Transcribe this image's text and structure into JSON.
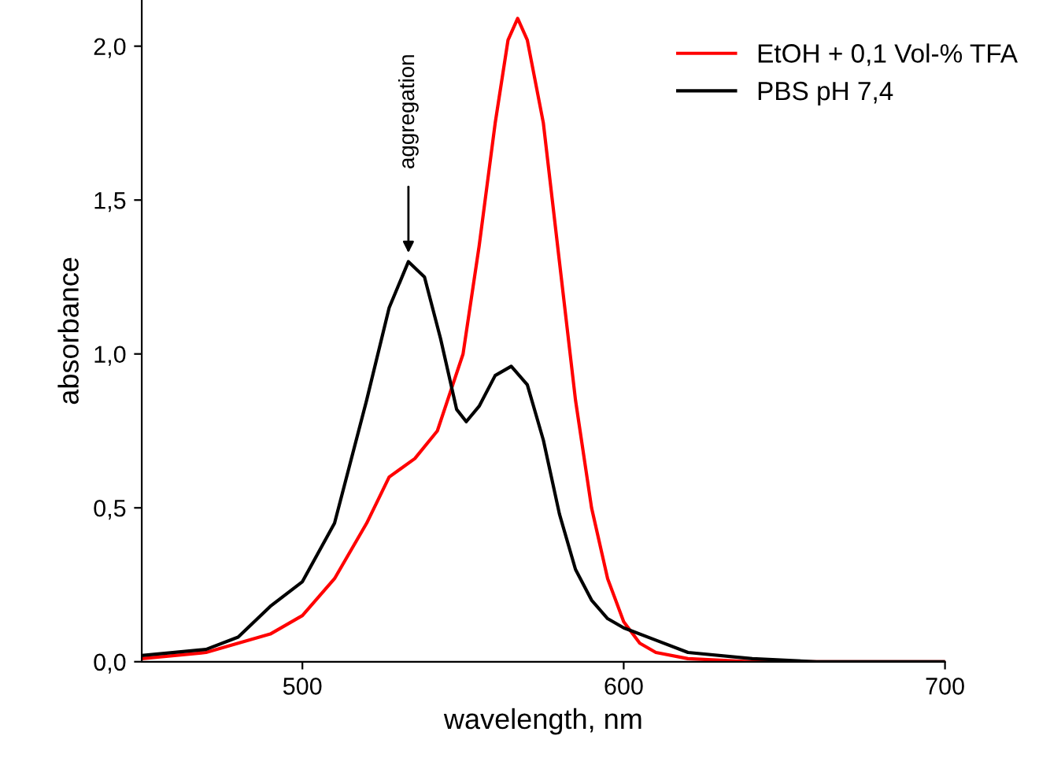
{
  "chart_data": {
    "type": "line",
    "xlabel": "wavelength, nm",
    "ylabel": "absorbance",
    "xlim": [
      450,
      700
    ],
    "xticks": [
      500,
      600,
      700
    ],
    "ylim": [
      0,
      2.15
    ],
    "yticks": [
      {
        "value": 0,
        "label": "0,0"
      },
      {
        "value": 0.5,
        "label": "0,5"
      },
      {
        "value": 1.0,
        "label": "1,0"
      },
      {
        "value": 1.5,
        "label": "1,5"
      },
      {
        "value": 2.0,
        "label": "2,0"
      }
    ],
    "legend": "top right",
    "grid": false,
    "marker": "none",
    "line_style": "solid",
    "annotations": [
      {
        "text": "aggregation",
        "x": 533,
        "y": 1.3
      }
    ],
    "series": [
      {
        "name": "EtOH + 0,1 Vol-% TFA",
        "color": "#ff0000",
        "x": [
          450,
          470,
          490,
          500,
          510,
          520,
          527,
          535,
          542,
          550,
          555,
          560,
          564,
          567,
          570,
          575,
          580,
          585,
          590,
          595,
          600,
          605,
          610,
          620,
          640,
          700
        ],
        "values": [
          0.01,
          0.03,
          0.09,
          0.15,
          0.27,
          0.45,
          0.6,
          0.66,
          0.75,
          1.0,
          1.35,
          1.75,
          2.02,
          2.09,
          2.02,
          1.75,
          1.3,
          0.85,
          0.5,
          0.27,
          0.13,
          0.06,
          0.03,
          0.01,
          0,
          0
        ]
      },
      {
        "name": "PBS pH 7,4",
        "color": "#000000",
        "x": [
          450,
          470,
          480,
          490,
          500,
          510,
          520,
          527,
          533,
          538,
          543,
          548,
          551,
          555,
          560,
          565,
          570,
          575,
          580,
          585,
          590,
          595,
          600,
          610,
          620,
          640,
          660,
          700
        ],
        "values": [
          0.02,
          0.04,
          0.08,
          0.18,
          0.26,
          0.45,
          0.85,
          1.15,
          1.3,
          1.25,
          1.05,
          0.82,
          0.78,
          0.83,
          0.93,
          0.96,
          0.9,
          0.72,
          0.48,
          0.3,
          0.2,
          0.14,
          0.11,
          0.07,
          0.03,
          0.01,
          0,
          0
        ]
      }
    ]
  }
}
